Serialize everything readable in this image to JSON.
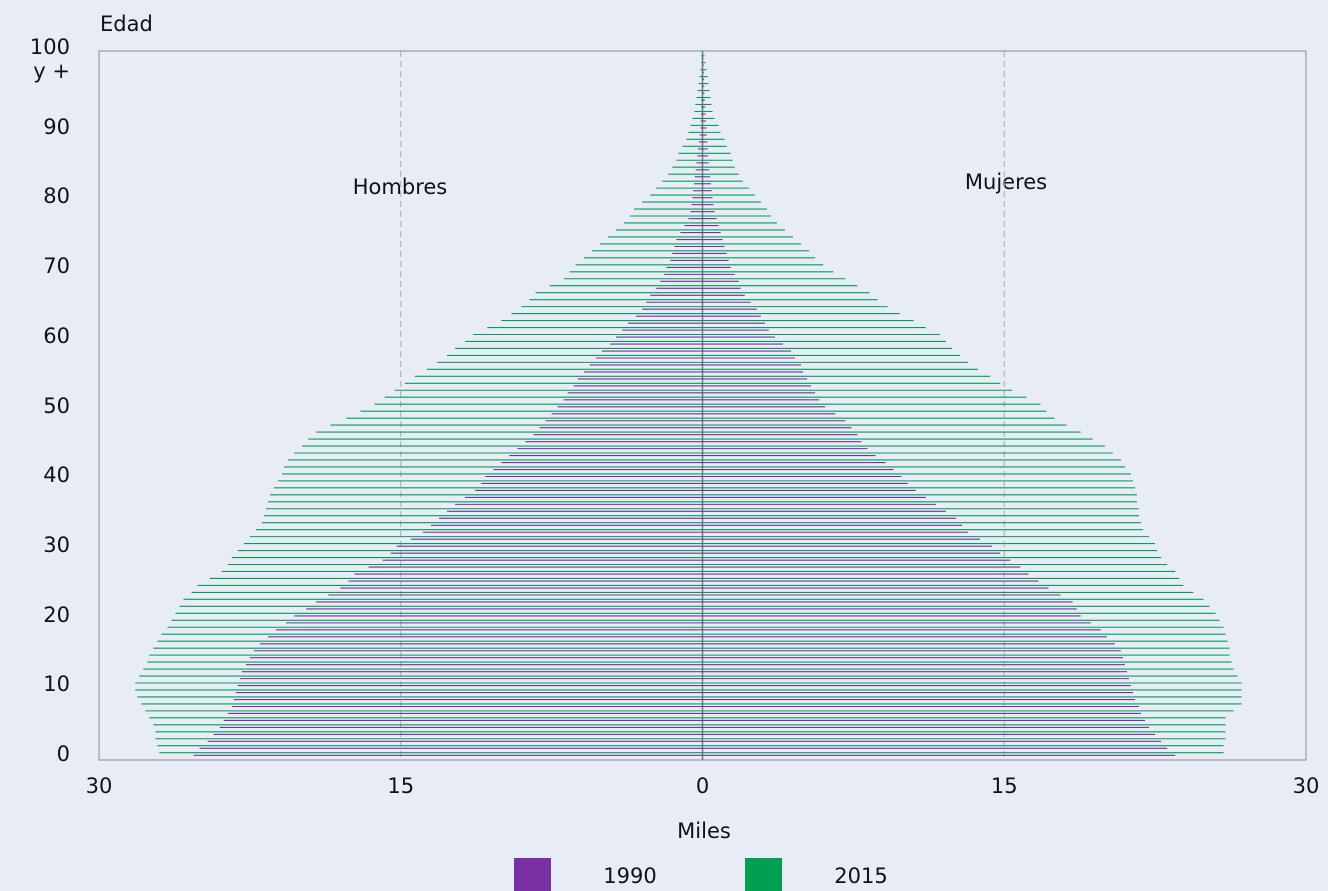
{
  "chart_data": {
    "type": "pyramid",
    "y_axis_label": "Edad",
    "x_axis_label": "Miles",
    "annotations": {
      "hombres": "Hombres",
      "mujeres": "Mujeres"
    },
    "ages": [
      0,
      1,
      2,
      3,
      4,
      5,
      6,
      7,
      8,
      9,
      10,
      11,
      12,
      13,
      14,
      15,
      16,
      17,
      18,
      19,
      20,
      21,
      22,
      23,
      24,
      25,
      26,
      27,
      28,
      29,
      30,
      31,
      32,
      33,
      34,
      35,
      36,
      37,
      38,
      39,
      40,
      41,
      42,
      43,
      44,
      45,
      46,
      47,
      48,
      49,
      50,
      51,
      52,
      53,
      54,
      55,
      56,
      57,
      58,
      59,
      60,
      61,
      62,
      63,
      64,
      65,
      66,
      67,
      68,
      69,
      70,
      71,
      72,
      73,
      74,
      75,
      76,
      77,
      78,
      79,
      80,
      81,
      82,
      83,
      84,
      85,
      86,
      87,
      88,
      89,
      90,
      91,
      92,
      93,
      94,
      95,
      96,
      97,
      98,
      99,
      100
    ],
    "series": [
      {
        "name": "1990",
        "color": "#7a2fa3",
        "hombres": [
          25.3,
          25.0,
          24.6,
          24.3,
          24.0,
          23.8,
          23.6,
          23.4,
          23.3,
          23.2,
          23.1,
          23.0,
          22.9,
          22.7,
          22.5,
          22.3,
          22.0,
          21.6,
          21.2,
          20.7,
          20.3,
          19.7,
          19.2,
          18.6,
          18.0,
          17.6,
          17.3,
          16.6,
          15.9,
          15.5,
          15.2,
          14.5,
          13.9,
          13.5,
          13.1,
          12.7,
          12.3,
          11.8,
          11.3,
          11.0,
          10.8,
          10.4,
          10.0,
          9.6,
          9.2,
          8.8,
          8.4,
          8.1,
          7.8,
          7.5,
          7.2,
          6.9,
          6.7,
          6.4,
          6.2,
          5.9,
          5.6,
          5.3,
          5.0,
          4.6,
          4.3,
          4.0,
          3.7,
          3.3,
          3.0,
          2.8,
          2.6,
          2.3,
          2.1,
          1.9,
          1.8,
          1.6,
          1.5,
          1.4,
          1.3,
          1.1,
          0.9,
          0.7,
          0.6,
          0.55,
          0.5,
          0.46,
          0.42,
          0.38,
          0.34,
          0.3,
          0.26,
          0.22,
          0.18,
          0.14,
          0.1,
          0.09,
          0.08,
          0.07,
          0.06,
          0.05,
          0.04,
          0.03,
          0.02,
          0.015,
          0.01
        ],
        "mujeres": [
          23.5,
          23.1,
          22.8,
          22.5,
          22.2,
          22.0,
          21.8,
          21.7,
          21.5,
          21.4,
          21.3,
          21.2,
          21.1,
          21.0,
          20.9,
          20.8,
          20.5,
          20.1,
          19.8,
          19.3,
          18.8,
          18.6,
          18.4,
          17.8,
          17.2,
          16.7,
          16.2,
          15.8,
          15.3,
          14.8,
          14.4,
          13.8,
          13.2,
          12.9,
          12.6,
          12.1,
          11.6,
          11.1,
          10.6,
          10.2,
          9.9,
          9.5,
          9.1,
          8.6,
          8.2,
          7.9,
          7.7,
          7.4,
          7.1,
          6.6,
          6.1,
          5.8,
          5.6,
          5.4,
          5.2,
          5.0,
          4.9,
          4.6,
          4.4,
          4.0,
          3.6,
          3.3,
          3.1,
          2.9,
          2.7,
          2.4,
          2.1,
          1.9,
          1.8,
          1.6,
          1.4,
          1.3,
          1.2,
          1.1,
          1.0,
          0.9,
          0.8,
          0.7,
          0.6,
          0.55,
          0.5,
          0.46,
          0.42,
          0.38,
          0.34,
          0.3,
          0.28,
          0.26,
          0.24,
          0.22,
          0.2,
          0.18,
          0.16,
          0.14,
          0.12,
          0.1,
          0.09,
          0.08,
          0.07,
          0.06,
          0.05
        ]
      },
      {
        "name": "2015",
        "color": "#00a050",
        "hombres": [
          27.0,
          27.1,
          27.2,
          27.2,
          27.3,
          27.5,
          27.7,
          27.9,
          28.1,
          28.2,
          28.2,
          28.0,
          27.8,
          27.6,
          27.5,
          27.3,
          27.1,
          26.9,
          26.6,
          26.4,
          26.2,
          26.0,
          25.8,
          25.4,
          25.1,
          24.5,
          23.9,
          23.6,
          23.4,
          23.1,
          22.8,
          22.5,
          22.2,
          21.9,
          21.8,
          21.7,
          21.6,
          21.5,
          21.3,
          21.1,
          20.9,
          20.8,
          20.6,
          20.3,
          19.9,
          19.6,
          19.2,
          18.5,
          17.7,
          17.0,
          16.3,
          15.8,
          15.3,
          14.8,
          14.3,
          13.7,
          13.2,
          12.7,
          12.3,
          11.8,
          11.4,
          10.7,
          10.0,
          9.5,
          9.0,
          8.6,
          8.3,
          7.6,
          6.9,
          6.6,
          6.3,
          5.9,
          5.5,
          5.1,
          4.7,
          4.3,
          3.9,
          3.6,
          3.4,
          3.0,
          2.6,
          2.3,
          2.0,
          1.7,
          1.5,
          1.3,
          1.2,
          1.0,
          0.8,
          0.7,
          0.6,
          0.5,
          0.4,
          0.35,
          0.3,
          0.25,
          0.2,
          0.15,
          0.1,
          0.07,
          0.05
        ],
        "mujeres": [
          25.9,
          25.9,
          26.0,
          26.0,
          26.0,
          26.0,
          26.4,
          26.8,
          26.8,
          26.8,
          26.8,
          26.6,
          26.4,
          26.3,
          26.2,
          26.2,
          26.1,
          26.0,
          25.9,
          25.7,
          25.5,
          25.2,
          24.9,
          24.4,
          23.9,
          23.7,
          23.5,
          23.1,
          22.8,
          22.6,
          22.5,
          22.2,
          21.9,
          21.8,
          21.7,
          21.7,
          21.6,
          21.6,
          21.5,
          21.4,
          21.3,
          21.0,
          20.8,
          20.4,
          20.0,
          19.4,
          18.8,
          18.1,
          17.5,
          17.1,
          16.8,
          16.1,
          15.4,
          14.8,
          14.3,
          13.7,
          13.2,
          12.8,
          12.4,
          12.1,
          11.8,
          11.1,
          10.5,
          9.8,
          9.2,
          8.7,
          8.3,
          7.7,
          7.1,
          6.5,
          6.0,
          5.6,
          5.3,
          4.9,
          4.5,
          4.1,
          3.7,
          3.4,
          3.2,
          2.9,
          2.6,
          2.3,
          2.0,
          1.8,
          1.6,
          1.5,
          1.4,
          1.2,
          1.1,
          0.9,
          0.8,
          0.6,
          0.5,
          0.45,
          0.4,
          0.35,
          0.3,
          0.25,
          0.2,
          0.15,
          0.1
        ]
      }
    ],
    "xlim": [
      -30,
      30
    ],
    "xticks": [
      {
        "value": -30,
        "label": "30"
      },
      {
        "value": -15,
        "label": "15"
      },
      0,
      15,
      30
    ],
    "ylim": [
      0,
      100
    ],
    "yticks": [
      0,
      10,
      20,
      30,
      40,
      50,
      60,
      70,
      80,
      90,
      {
        "value": 100,
        "label": "100\ny +"
      }
    ],
    "grid": true
  }
}
